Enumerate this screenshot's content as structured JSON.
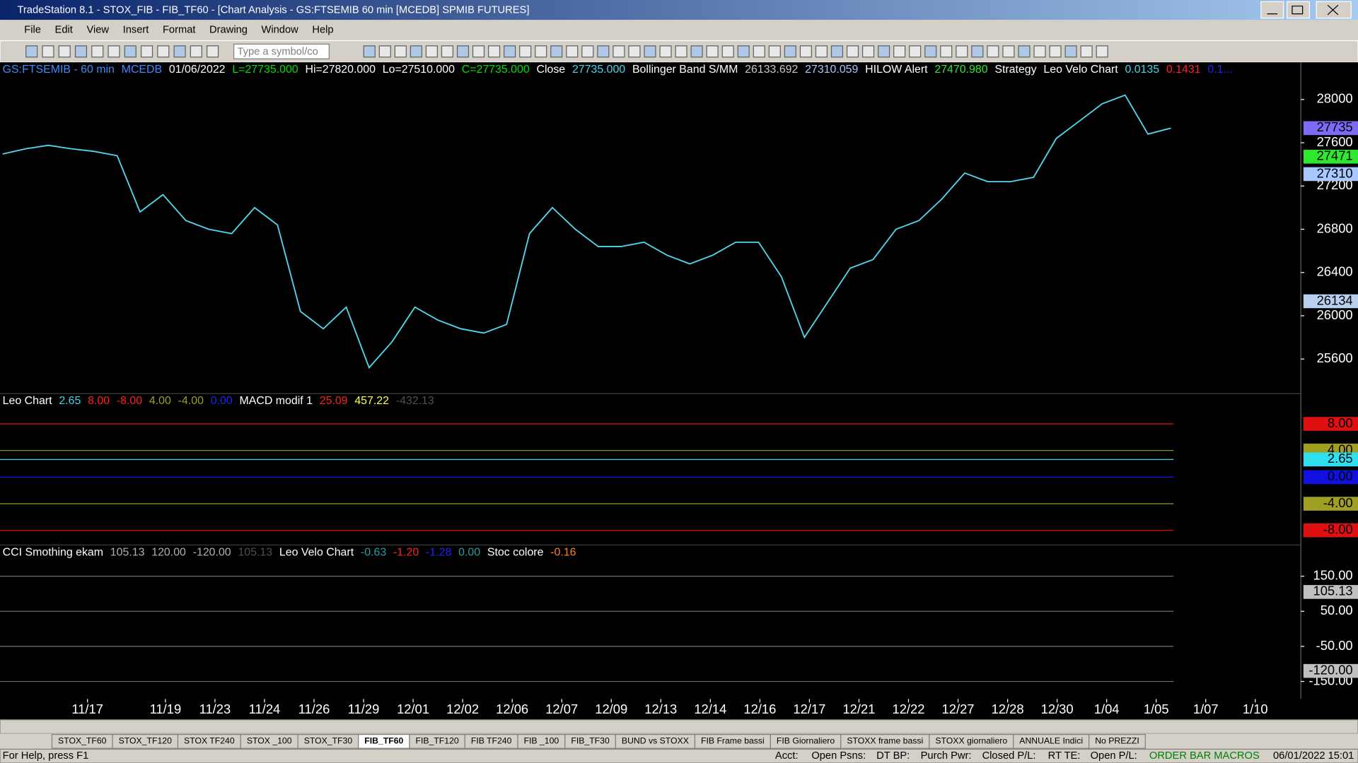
{
  "window": {
    "title": "TradeStation 8.1 - STOX_FIB - FIB_TF60 - [Chart Analysis - GS:FTSEMIB  60 min  [MCEDB] SPMIB FUTURES]"
  },
  "menu": [
    "File",
    "Edit",
    "View",
    "Insert",
    "Format",
    "Drawing",
    "Window",
    "Help"
  ],
  "toolbar": {
    "symbol_placeholder": "Type a symbol/co"
  },
  "chart_data": [
    {
      "type": "line",
      "legend_items": [
        {
          "text": "GS:FTSEMIB - 60 min",
          "color": "#3a8cff"
        },
        {
          "text": "MCEDB",
          "color": "#3a8cff"
        },
        {
          "text": "01/06/2022",
          "color": "#ffffff"
        },
        {
          "text": "L=27735.000",
          "color": "#00e000"
        },
        {
          "text": "Hi=27820.000",
          "color": "#ffffff"
        },
        {
          "text": "Lo=27510.000",
          "color": "#ffffff"
        },
        {
          "text": "C=27735.000",
          "color": "#00e000"
        },
        {
          "text": "Close",
          "color": "#ffffff"
        },
        {
          "text": "27735.000",
          "color": "#3fd8ea"
        },
        {
          "text": "Bollinger Band S/MM",
          "color": "#ffffff"
        },
        {
          "text": "26133.692",
          "color": "#c8c8c8"
        },
        {
          "text": "27310.059",
          "color": "#a8c8ff"
        },
        {
          "text": "HILOW Alert",
          "color": "#ffffff"
        },
        {
          "text": "27470.980",
          "color": "#2ee82e"
        },
        {
          "text": "Strategy",
          "color": "#ffffff"
        },
        {
          "text": "Leo Velo Chart",
          "color": "#ffffff"
        },
        {
          "text": "0.0135",
          "color": "#3fd8ea"
        },
        {
          "text": "0.1431",
          "color": "#ff2020"
        },
        {
          "text": "0.1...",
          "color": "#2020ff"
        }
      ],
      "color": "#4fd8ee",
      "values": [
        27496,
        27544,
        27576,
        27544,
        27520,
        27480,
        26960,
        27120,
        26880,
        26800,
        26760,
        27000,
        26840,
        26040,
        25880,
        26080,
        25520,
        25760,
        26080,
        25960,
        25880,
        25840,
        25920,
        26760,
        27000,
        26800,
        26640,
        26640,
        26680,
        26560,
        26480,
        26560,
        26680,
        26680,
        26360,
        25800,
        26120,
        26440,
        26520,
        26800,
        26880,
        27080,
        27320,
        27240,
        27240,
        27280,
        27640,
        27800,
        27960,
        28040,
        27680,
        27735
      ],
      "ylim": [
        25280,
        28344
      ],
      "yticks": [
        25600,
        26000,
        26400,
        26800,
        27200,
        27600,
        28000
      ],
      "markers": [
        {
          "value": 27735,
          "color": "#7b6cf6"
        },
        {
          "value": 27471,
          "color": "#2ee82e"
        },
        {
          "value": 27310,
          "color": "#a8c8ff"
        },
        {
          "value": 26134,
          "color": "#b8d0f0"
        }
      ],
      "grid": false
    },
    {
      "type": "line",
      "legend_items": [
        {
          "text": "Leo Chart",
          "color": "#ffffff"
        },
        {
          "text": "2.65",
          "color": "#3fd8ea"
        },
        {
          "text": "8.00",
          "color": "#ff2020"
        },
        {
          "text": "-8.00",
          "color": "#ff2020"
        },
        {
          "text": "4.00",
          "color": "#a0a020"
        },
        {
          "text": "-4.00",
          "color": "#a0a020"
        },
        {
          "text": "0.00",
          "color": "#2020ff"
        },
        {
          "text": "MACD modif 1",
          "color": "#ffffff"
        },
        {
          "text": "25.09",
          "color": "#ff2020"
        },
        {
          "text": "457.22",
          "color": "#ffff40"
        },
        {
          "text": "-432.13",
          "color": "#505050"
        }
      ],
      "ylim": [
        -10.2,
        12.55
      ],
      "markers": [
        {
          "value": 8,
          "label": "8.00",
          "color": "#e01010"
        },
        {
          "value": 4,
          "label": "4.00",
          "color": "#a0a020"
        },
        {
          "value": 2.65,
          "label": "2.65",
          "color": "#30e0f0"
        },
        {
          "value": 0,
          "label": "0.00",
          "color": "#1010e0"
        },
        {
          "value": -4,
          "label": "-4.00",
          "color": "#a0a020"
        },
        {
          "value": -8,
          "label": "-8.00",
          "color": "#e01010"
        }
      ],
      "grid": false
    },
    {
      "type": "line",
      "legend_items": [
        {
          "text": "CCI Smothing ekam",
          "color": "#ffffff"
        },
        {
          "text": "105.13",
          "color": "#b0b0b0"
        },
        {
          "text": "120.00",
          "color": "#b0b0b0"
        },
        {
          "text": "-120.00",
          "color": "#b0b0b0"
        },
        {
          "text": "105.13",
          "color": "#505050"
        },
        {
          "text": "Leo Velo Chart",
          "color": "#ffffff"
        },
        {
          "text": "-0.63",
          "color": "#20a0a0"
        },
        {
          "text": "-1.20",
          "color": "#ff2020"
        },
        {
          "text": "-1.28",
          "color": "#2020ff"
        },
        {
          "text": "0.00",
          "color": "#20a0a0"
        },
        {
          "text": "Stoc colore",
          "color": "#ffffff"
        },
        {
          "text": "-0.16",
          "color": "#ff8020"
        }
      ],
      "ylim": [
        -200,
        239
      ],
      "yticks": [
        {
          "value": 150,
          "label": "150.00"
        },
        {
          "value": 50,
          "label": "50.00"
        },
        {
          "value": -50,
          "label": "-50.00"
        },
        {
          "value": -150,
          "label": "-150.00"
        }
      ],
      "markers": [
        {
          "value": 105.13,
          "color": "#c0c0c0"
        },
        {
          "value": -120,
          "label": "-120.00",
          "color": "#c0c0c0"
        }
      ],
      "grid": true
    }
  ],
  "x_axis": {
    "labels": [
      "11/17",
      "11/19",
      "11/23",
      "11/24",
      "11/26",
      "11/29",
      "12/01",
      "12/02",
      "12/06",
      "12/07",
      "12/09",
      "12/13",
      "12/14",
      "12/16",
      "12/17",
      "12/21",
      "12/22",
      "12/27",
      "12/28",
      "12/30",
      "1/04",
      "1/05",
      "1/07",
      "1/10"
    ]
  },
  "tabs": [
    "STOX_TF60",
    "STOX_TF120",
    "STOX TF240",
    "STOX _100",
    "STOX_TF30",
    "FIB_TF60",
    "FIB_TF120",
    "FIB TF240",
    "FIB _100",
    "FIB_TF30",
    "BUND vs STOXX",
    "FIB Frame bassi",
    "FIB Giornaliero",
    "STOXX frame bassi",
    "STOXX giornaliero",
    "ANNUALE Indici",
    "No PREZZI"
  ],
  "active_tab": 5,
  "status_bar": [
    "For Help, press F1",
    "Acct:",
    "Open Psns:",
    "DT BP:",
    "Purch Pwr:",
    "Closed P/L:",
    "RT TE:",
    "Open P/L:",
    "ORDER BAR MACROS",
    "06/01/2022 15:01"
  ]
}
